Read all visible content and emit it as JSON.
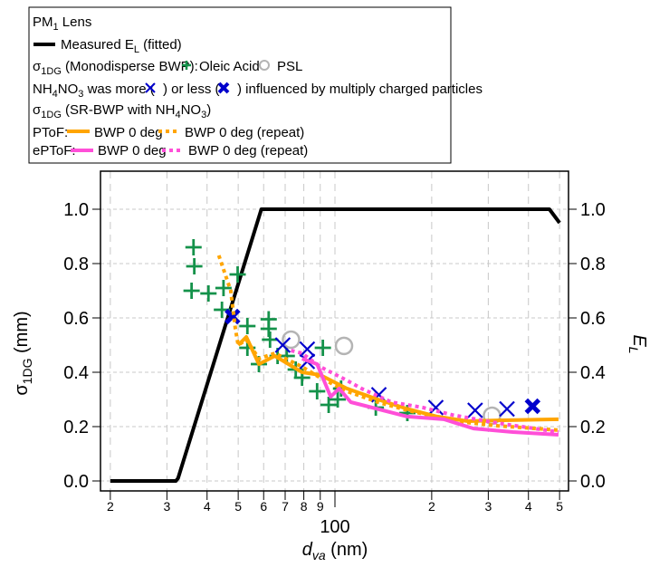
{
  "legend": {
    "title": {
      "a": "PM",
      "sub": "1",
      "b": " Lens"
    },
    "measured": {
      "a": "Measured E",
      "sub": "L",
      "b": " (fitted)"
    },
    "mono": {
      "a": "σ",
      "sub": "1DG",
      "b": " (Monodisperse BWP):",
      "oleic": "Oleic Acid",
      "psl": "PSL"
    },
    "nh4": {
      "a": "NH",
      "s1": "4",
      "b": "NO",
      "s2": "3",
      "c": " was more (",
      "d": ") or less (",
      "e": ") influenced by multiply charged particles"
    },
    "sr": {
      "a": "σ",
      "sub": "1DG",
      "b": " (SR-BWP with NH",
      "s1": "4",
      "c": "NO",
      "s2": "3",
      "d": ")"
    },
    "ptof": {
      "label": "PToF:",
      "solid": "BWP 0 deg",
      "dashed": "BWP 0 deg (repeat)"
    },
    "eptof": {
      "label": "ePToF:",
      "solid": "BWP 0 deg",
      "dashed": "BWP 0 deg (repeat)"
    }
  },
  "chart_data": {
    "type": "scatter",
    "xscale": "log",
    "xlim": [
      19,
      520
    ],
    "ylim": [
      -0.05,
      1.12
    ],
    "y2lim": [
      -0.05,
      1.12
    ],
    "grid": true,
    "legend_position": "top",
    "xlabel": {
      "main": "d",
      "sub": "va",
      "unit": " (nm)"
    },
    "ylabel": {
      "main": "σ",
      "sub": "1DG",
      "unit": " (mm)"
    },
    "y2label": {
      "main": "E",
      "sub": "L"
    },
    "xticks": [
      {
        "v": 20,
        "label": "2"
      },
      {
        "v": 30,
        "label": "3"
      },
      {
        "v": 40,
        "label": "4"
      },
      {
        "v": 50,
        "label": "5"
      },
      {
        "v": 60,
        "label": "6"
      },
      {
        "v": 70,
        "label": "7"
      },
      {
        "v": 80,
        "label": "8"
      },
      {
        "v": 90,
        "label": "9"
      },
      {
        "v": 100,
        "label": "100"
      },
      {
        "v": 200,
        "label": "2"
      },
      {
        "v": 300,
        "label": "3"
      },
      {
        "v": 400,
        "label": "4"
      },
      {
        "v": 500,
        "label": "5"
      }
    ],
    "yticks": [
      "0.0",
      "0.2",
      "0.4",
      "0.6",
      "0.8",
      "1.0"
    ],
    "colors": {
      "measured": "#000000",
      "oleic": "#14924a",
      "psl": "#b4b4b4",
      "nh4": "#0000cc",
      "ptof": "#ffa500",
      "eptof": "#ff4fd8"
    },
    "series": [
      {
        "name": "Measured E_L (fitted)",
        "kind": "line",
        "axis": "right",
        "color": "#000000",
        "x": [
          20,
          32,
          32.5,
          59,
          465,
          500
        ],
        "y": [
          0,
          0,
          0.01,
          1.0,
          1.0,
          0.95
        ]
      },
      {
        "name": "Oleic Acid",
        "kind": "plus",
        "color": "#14924a",
        "x": [
          36.3,
          36.5,
          35.8,
          40.4,
          45,
          49.8,
          44.5,
          53.4,
          62.2,
          62.2,
          62.8,
          53.4,
          58,
          66.3,
          70.8,
          75.5,
          79,
          88,
          91.7,
          95.6,
          102,
          104.5,
          134,
          168
        ],
        "y": [
          0.86,
          0.79,
          0.7,
          0.69,
          0.71,
          0.76,
          0.63,
          0.57,
          0.595,
          0.56,
          0.52,
          0.49,
          0.43,
          0.46,
          0.46,
          0.41,
          0.38,
          0.33,
          0.49,
          0.28,
          0.3,
          0.34,
          0.27,
          0.25
        ]
      },
      {
        "name": "PSL",
        "kind": "circle",
        "color": "#b4b4b4",
        "x": [
          73,
          106.7,
          308
        ],
        "y": [
          0.52,
          0.497,
          0.24
        ]
      },
      {
        "name": "NH4NO3 more influenced",
        "kind": "x",
        "color": "#0000cc",
        "x": [
          68.8,
          82,
          82,
          137,
          206,
          273,
          343
        ],
        "y": [
          0.5,
          0.485,
          0.44,
          0.317,
          0.27,
          0.26,
          0.265
        ]
      },
      {
        "name": "NH4NO3 less influenced",
        "kind": "xbold",
        "color": "#0000cc",
        "x": [
          48,
          412
        ],
        "y": [
          0.605,
          0.275
        ]
      },
      {
        "name": "PToF BWP 0 deg",
        "kind": "line",
        "color": "#ffa500",
        "x": [
          50,
          53,
          58,
          65,
          79,
          90,
          109,
          136,
          168,
          208,
          259,
          321,
          496
        ],
        "y": [
          0.5,
          0.53,
          0.43,
          0.46,
          0.4,
          0.39,
          0.34,
          0.3,
          0.265,
          0.237,
          0.22,
          0.223,
          0.227
        ]
      },
      {
        "name": "PToF BWP 0 deg (repeat)",
        "kind": "dashed",
        "color": "#ffa500",
        "x": [
          43.5,
          47.4,
          49,
          50,
          53,
          58,
          65,
          79,
          90,
          109,
          136,
          168,
          208,
          259,
          321,
          496
        ],
        "y": [
          0.83,
          0.7,
          0.56,
          0.5,
          0.52,
          0.45,
          0.47,
          0.42,
          0.38,
          0.33,
          0.29,
          0.26,
          0.235,
          0.215,
          0.203,
          0.187
        ]
      },
      {
        "name": "ePToF BWP 0 deg",
        "kind": "line",
        "color": "#ff4fd8",
        "x": [
          79,
          88,
          97,
          103,
          112,
          121,
          168,
          218,
          270,
          358,
          496
        ],
        "y": [
          0.45,
          0.43,
          0.31,
          0.34,
          0.29,
          0.28,
          0.237,
          0.227,
          0.193,
          0.18,
          0.17
        ]
      },
      {
        "name": "ePToF BWP 0 deg (repeat)",
        "kind": "dashed",
        "color": "#ff4fd8",
        "x": [
          73,
          79,
          90,
          109,
          121,
          150,
          188,
          232,
          321,
          496
        ],
        "y": [
          0.48,
          0.47,
          0.42,
          0.37,
          0.34,
          0.29,
          0.27,
          0.243,
          0.213,
          0.18
        ]
      }
    ]
  }
}
